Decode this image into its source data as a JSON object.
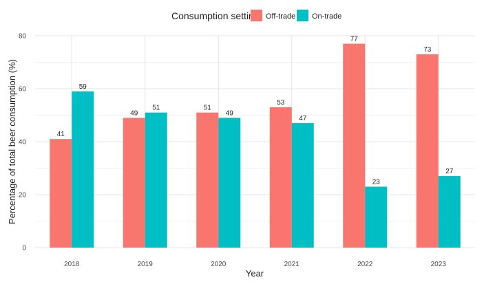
{
  "chart_data": {
    "type": "bar",
    "categories": [
      "2018",
      "2019",
      "2020",
      "2021",
      "2022",
      "2023"
    ],
    "series": [
      {
        "name": "Off-trade",
        "color": "#F8766D",
        "values": [
          41,
          49,
          51,
          53,
          77,
          73
        ]
      },
      {
        "name": "On-trade",
        "color": "#00BFC4",
        "values": [
          59,
          51,
          49,
          47,
          23,
          27
        ]
      }
    ],
    "title": "",
    "xlabel": "Year",
    "ylabel": "Percentage of total beer consumption (%)",
    "ylim": [
      0,
      80
    ],
    "yticks": [
      0,
      20,
      40,
      60,
      80
    ],
    "grid": true,
    "legend": {
      "title": "Consumption setting",
      "position": "top"
    }
  }
}
